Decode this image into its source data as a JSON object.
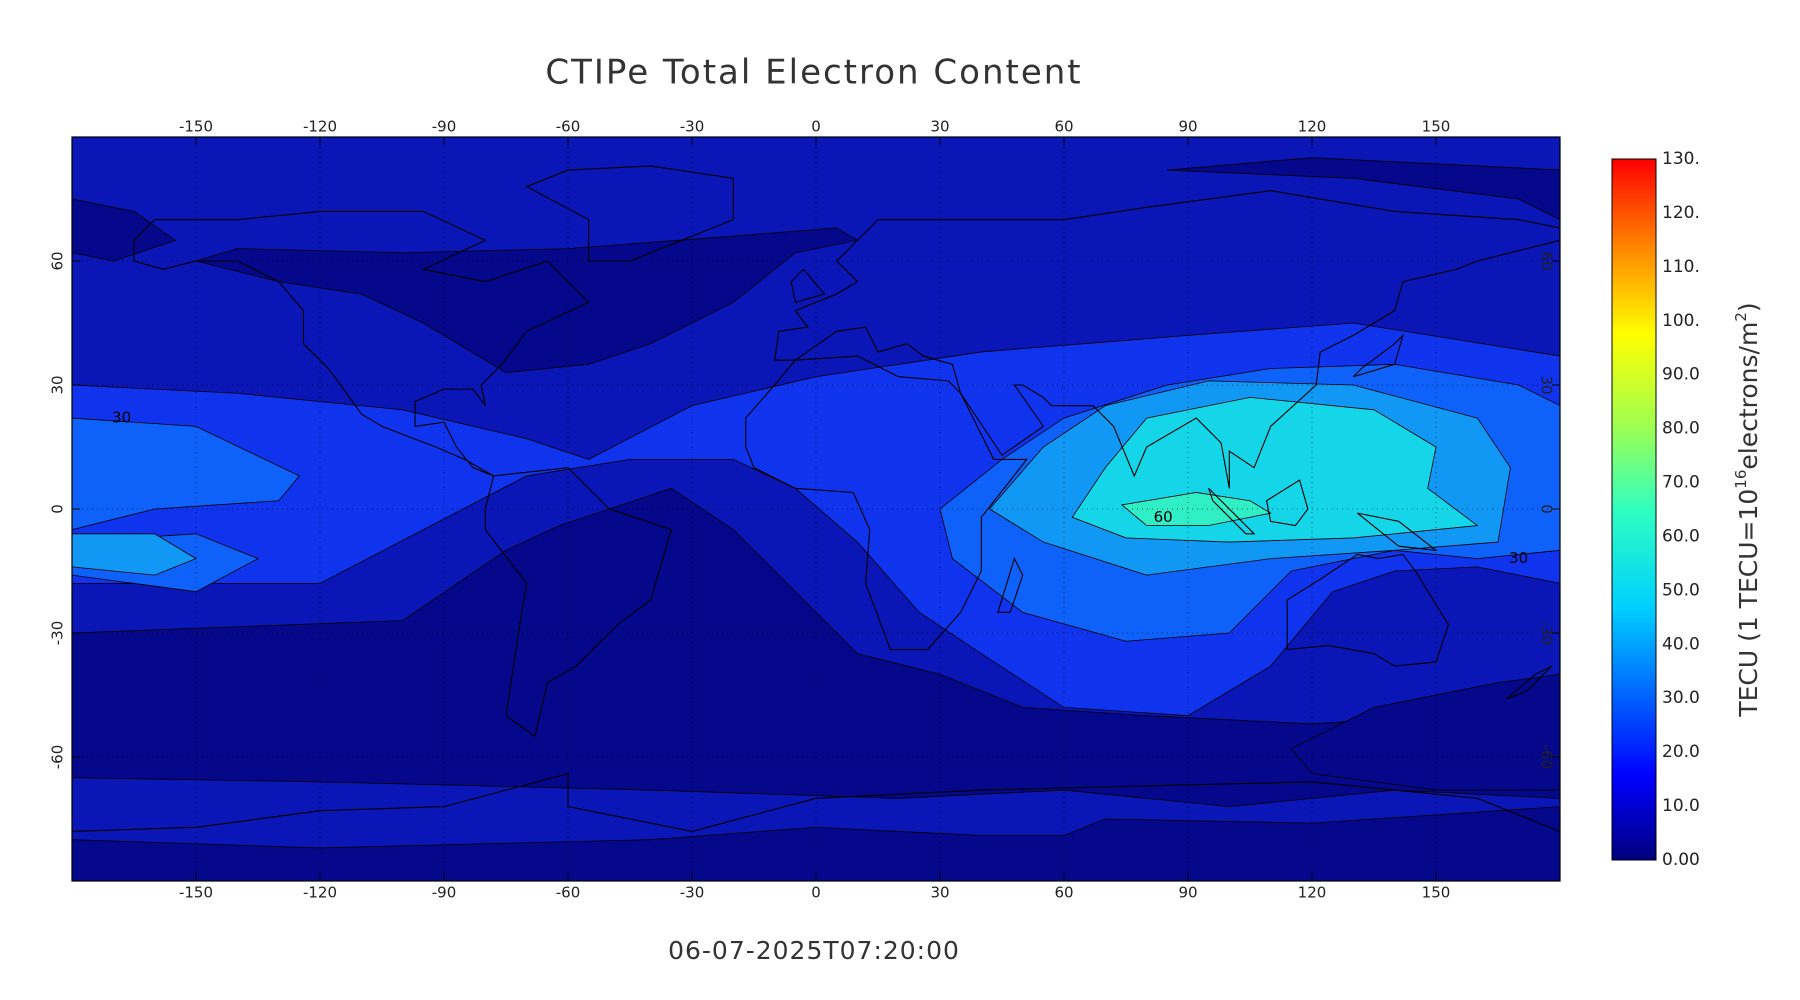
{
  "chart_data": {
    "type": "contour_map",
    "title": "CTIPe Total Electron Content",
    "timestamp": "06-07-2025T07:20:00",
    "xlim": [
      -180,
      180
    ],
    "ylim": [
      -90,
      90
    ],
    "xticks": [
      -150,
      -120,
      -90,
      -60,
      -30,
      0,
      30,
      60,
      90,
      120,
      150
    ],
    "yticks": [
      -60,
      -30,
      0,
      30,
      60
    ],
    "grid": true,
    "contour_labels": [
      "30",
      "30",
      "60"
    ],
    "colorbar": {
      "lim": [
        0,
        130
      ],
      "ticks": [
        {
          "value": 0,
          "label": "0.00"
        },
        {
          "value": 10,
          "label": "10.0"
        },
        {
          "value": 20,
          "label": "20.0"
        },
        {
          "value": 30,
          "label": "30.0"
        },
        {
          "value": 40,
          "label": "40.0"
        },
        {
          "value": 50,
          "label": "50.0"
        },
        {
          "value": 60,
          "label": "60.0"
        },
        {
          "value": 70,
          "label": "70.0"
        },
        {
          "value": 80,
          "label": "80.0"
        },
        {
          "value": 90,
          "label": "90.0"
        },
        {
          "value": 100,
          "label": "100."
        },
        {
          "value": 110,
          "label": "110."
        },
        {
          "value": 120,
          "label": "120."
        },
        {
          "value": 130,
          "label": "130."
        }
      ],
      "label": [
        "TECU (1 TECU=10",
        "16",
        "electrons/m",
        "2",
        ")"
      ]
    }
  }
}
